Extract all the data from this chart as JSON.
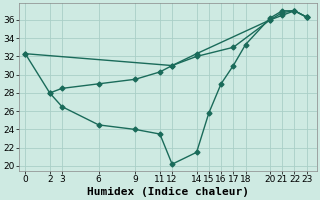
{
  "xlabel": "Humidex (Indice chaleur)",
  "background_color": "#ceeae2",
  "grid_color": "#aacfc7",
  "line_color": "#1a6b5a",
  "xlim": [
    -0.5,
    23.8
  ],
  "ylim": [
    19.5,
    37.8
  ],
  "xticks": [
    0,
    2,
    3,
    6,
    9,
    11,
    12,
    14,
    15,
    16,
    17,
    18,
    20,
    21,
    22,
    23
  ],
  "yticks": [
    20,
    22,
    24,
    26,
    28,
    30,
    32,
    34,
    36
  ],
  "line1_x": [
    0,
    2,
    3,
    6,
    9,
    11,
    12,
    14,
    15,
    16,
    17,
    18,
    20,
    21,
    22,
    23
  ],
  "line1_y": [
    32.3,
    28.0,
    26.5,
    24.5,
    24.0,
    23.5,
    20.2,
    21.5,
    25.8,
    29.0,
    31.0,
    33.3,
    36.2,
    37.0,
    37.0,
    36.3
  ],
  "line2_x": [
    0,
    12,
    14,
    20,
    21,
    22,
    23
  ],
  "line2_y": [
    32.3,
    31.0,
    32.3,
    36.0,
    36.5,
    37.0,
    36.3
  ],
  "line3_x": [
    2,
    3,
    6,
    9,
    11,
    12,
    14,
    17,
    20,
    21,
    22,
    23
  ],
  "line3_y": [
    28.0,
    28.5,
    29.0,
    29.5,
    30.3,
    31.0,
    32.0,
    33.0,
    36.0,
    36.8,
    37.0,
    36.3
  ],
  "marker": "D",
  "markersize": 2.5,
  "linewidth": 1.0,
  "xlabel_fontsize": 8,
  "tick_fontsize": 6.5
}
